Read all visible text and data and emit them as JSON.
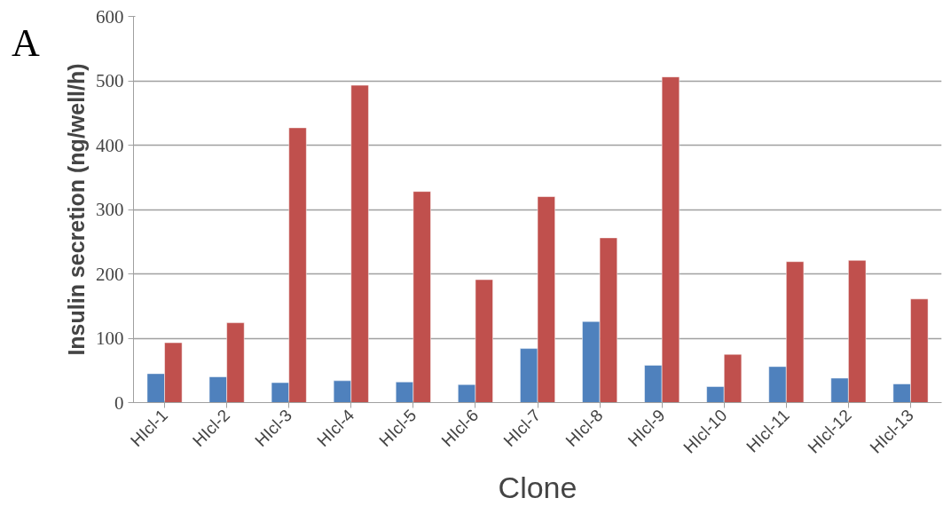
{
  "chart_data": {
    "type": "bar",
    "xlabel": "Clone",
    "ylabel": "Insulin secretion (ng/well/h)",
    "annotations": [
      "A"
    ],
    "categories": [
      "HIcl-1",
      "HIcl-2",
      "HIcl-3",
      "HIcl-4",
      "HIcl-5",
      "HIcl-6",
      "HIcl-7",
      "HIcl-8",
      "HIcl-9",
      "HIcl-10",
      "HIcl-11",
      "HIcl-12",
      "HIcl-13"
    ],
    "series": [
      {
        "color": "#4f81bd",
        "values": [
          45,
          40,
          31,
          34,
          32,
          28,
          84,
          126,
          58,
          25,
          56,
          38,
          29
        ]
      },
      {
        "color": "#c0504d",
        "values": [
          93,
          124,
          427,
          493,
          328,
          191,
          320,
          256,
          506,
          75,
          219,
          221,
          161
        ]
      }
    ],
    "ylim": [
      0,
      600
    ],
    "yticks": [
      0,
      100,
      200,
      300,
      400,
      500,
      600
    ],
    "grid": "y"
  }
}
